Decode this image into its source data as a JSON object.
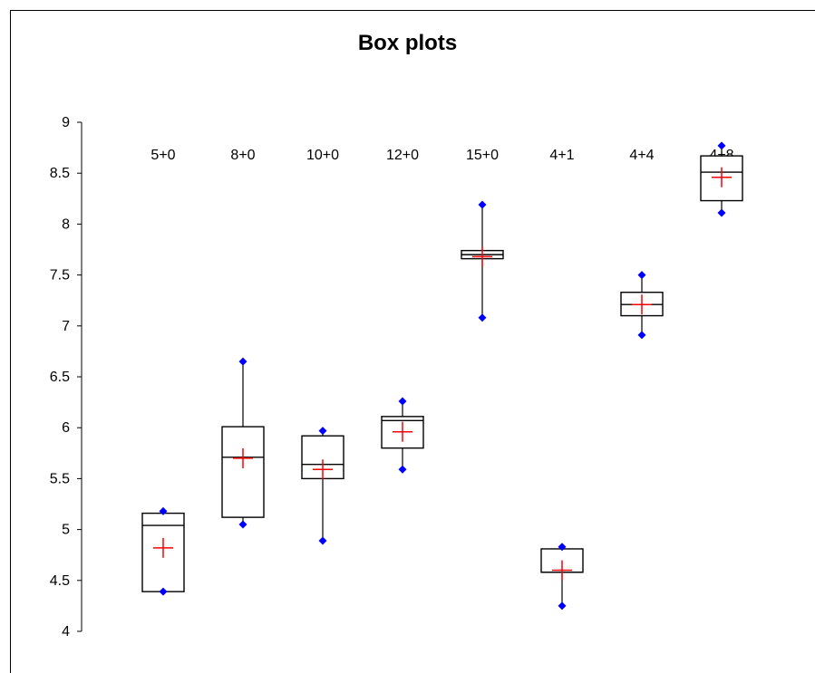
{
  "chart_data": {
    "type": "box",
    "title": "Box plots",
    "xlabel": "",
    "ylabel": "",
    "ylim": [
      4,
      9
    ],
    "yticks": [
      "4",
      "4.5",
      "5",
      "5.5",
      "6",
      "6.5",
      "7",
      "7.5",
      "8",
      "8.5",
      "9"
    ],
    "grid": false,
    "categories": [
      "5+0",
      "8+0",
      "10+0",
      "12+0",
      "15+0",
      "4+1",
      "4+4",
      "4+8"
    ],
    "boxes": [
      {
        "category": "5+0",
        "min": 4.39,
        "q1": 4.39,
        "median": 5.04,
        "q3": 5.16,
        "max": 5.18,
        "mean": 4.82
      },
      {
        "category": "8+0",
        "min": 5.05,
        "q1": 5.12,
        "median": 5.71,
        "q3": 6.01,
        "max": 6.65,
        "mean": 5.7
      },
      {
        "category": "10+0",
        "min": 4.89,
        "q1": 5.5,
        "median": 5.64,
        "q3": 5.92,
        "max": 5.97,
        "mean": 5.59
      },
      {
        "category": "12+0",
        "min": 5.59,
        "q1": 5.8,
        "median": 6.07,
        "q3": 6.11,
        "max": 6.26,
        "mean": 5.96
      },
      {
        "category": "15+0",
        "min": 7.08,
        "q1": 7.66,
        "median": 7.7,
        "q3": 7.74,
        "max": 8.19,
        "mean": 7.68
      },
      {
        "category": "4+1",
        "min": 4.25,
        "q1": 4.58,
        "median": 4.58,
        "q3": 4.81,
        "max": 4.83,
        "mean": 4.6
      },
      {
        "category": "4+4",
        "min": 6.91,
        "q1": 7.1,
        "median": 7.21,
        "q3": 7.33,
        "max": 7.5,
        "mean": 7.21
      },
      {
        "category": "4+8",
        "min": 8.11,
        "q1": 8.23,
        "median": 8.51,
        "q3": 8.67,
        "max": 8.77,
        "mean": 8.46
      }
    ],
    "colors": {
      "box": "#000000",
      "whisker": "#000000",
      "extreme": "#0000ff",
      "mean": "#ff0000"
    }
  }
}
